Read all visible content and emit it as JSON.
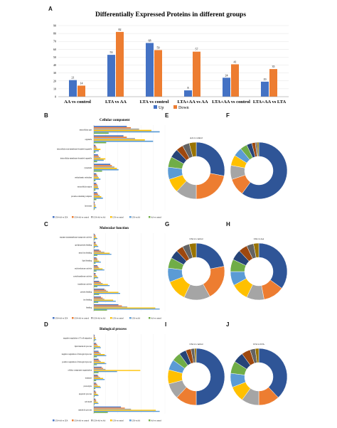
{
  "panels": {
    "A": "A",
    "B": "B",
    "C": "C",
    "D": "D",
    "E": "E",
    "F": "F",
    "G": "G",
    "H": "H",
    "I": "I",
    "J": "J"
  },
  "colors": {
    "up": "#4472C4",
    "down": "#ED7D31",
    "g1": "#4472C4",
    "g2": "#ED7D31",
    "g3": "#A5A5A5",
    "g4": "#FFC000",
    "g5": "#5B9BD5",
    "g6": "#70AD47"
  },
  "chart_data": [
    {
      "id": "A",
      "type": "bar",
      "title": "Differentially Expressed Proteins in different groups",
      "categories": [
        "AA vs control",
        "LTA vs AA",
        "LTA vs control",
        "LTA+AA vs AA",
        "LTA+AA vs control",
        "LTA+AA vs LTA"
      ],
      "series": [
        {
          "name": "Up",
          "values": [
            21,
            53,
            68,
            8,
            24,
            19
          ]
        },
        {
          "name": "Down",
          "values": [
            14,
            82,
            59,
            57,
            41,
            35
          ]
        }
      ],
      "ylim": [
        0,
        90
      ],
      "yticks": [
        0,
        10,
        20,
        30,
        40,
        50,
        60,
        70,
        80,
        90
      ],
      "legend": "bottom"
    },
    {
      "id": "B",
      "type": "bar",
      "orientation": "horizontal",
      "title": "Cellular component",
      "categories": [
        "intracellular part",
        "organelle",
        "intracellular non-membrane-bounded organelle",
        "intracellular membrane-bounded organelle",
        "cytoplasm",
        "endoplasmic reticulum",
        "extracellular region",
        "protein-containing complex",
        "lysosome"
      ],
      "series": [
        {
          "name": "LTA+AA vs LTA",
          "values": [
            40,
            36,
            2,
            5,
            20,
            3,
            3,
            4,
            1
          ]
        },
        {
          "name": "LTA+AA vs control",
          "values": [
            45,
            40,
            3,
            6,
            22,
            4,
            4,
            5,
            1
          ]
        },
        {
          "name": "LTA+AA vs AA",
          "values": [
            55,
            50,
            4,
            8,
            25,
            5,
            5,
            7,
            2
          ]
        },
        {
          "name": "LTA vs control",
          "values": [
            70,
            62,
            8,
            14,
            28,
            6,
            5,
            9,
            2
          ]
        },
        {
          "name": "LTA vs AA",
          "values": [
            80,
            72,
            6,
            12,
            30,
            8,
            6,
            11,
            3
          ]
        },
        {
          "name": "AA vs control",
          "values": [
            18,
            15,
            2,
            4,
            10,
            2,
            2,
            3,
            1
          ]
        }
      ],
      "legend": "bottom"
    },
    {
      "id": "C",
      "type": "bar",
      "orientation": "horizontal",
      "title": "Molecular function",
      "categories": [
        "enzyme transmembrane transporter activity",
        "apolipoprotein binding",
        "metal ion binding",
        "lipid binding",
        "oxidoreductase activity",
        "acetyltransferase activity",
        "transferase activity",
        "protein binding",
        "ion binding",
        "binding"
      ],
      "series": [
        {
          "name": "LTA+AA vs LTA",
          "values": [
            1,
            2,
            6,
            3,
            4,
            2,
            6,
            12,
            8,
            28
          ]
        },
        {
          "name": "LTA+AA vs control",
          "values": [
            2,
            2,
            8,
            4,
            5,
            2,
            8,
            14,
            10,
            32
          ]
        },
        {
          "name": "LTA+AA vs AA",
          "values": [
            2,
            3,
            12,
            4,
            6,
            3,
            10,
            16,
            12,
            38
          ]
        },
        {
          "name": "LTA vs control",
          "values": [
            3,
            4,
            18,
            6,
            10,
            4,
            16,
            28,
            22,
            70
          ]
        },
        {
          "name": "LTA vs AA",
          "values": [
            4,
            5,
            20,
            8,
            12,
            5,
            18,
            30,
            25,
            75
          ]
        },
        {
          "name": "AA vs control",
          "values": [
            1,
            1,
            4,
            2,
            3,
            1,
            4,
            6,
            5,
            15
          ]
        }
      ],
      "legend": "bottom"
    },
    {
      "id": "D",
      "type": "bar",
      "orientation": "horizontal",
      "title": "Biological process",
      "categories": [
        "negative regulation of T cell migration",
        "lipid metabolic process",
        "negative regulation of biological process",
        "positive regulation of biological process",
        "cellular component organization",
        "transport",
        "proteolysis",
        "apoptotic process",
        "cell death",
        "metabolic process"
      ],
      "series": [
        {
          "name": "LTA+AA vs LTA",
          "values": [
            1,
            3,
            6,
            6,
            10,
            5,
            3,
            2,
            2,
            35
          ]
        },
        {
          "name": "LTA+AA vs control",
          "values": [
            1,
            4,
            7,
            7,
            12,
            6,
            4,
            3,
            3,
            40
          ]
        },
        {
          "name": "LTA+AA vs AA",
          "values": [
            2,
            5,
            9,
            9,
            15,
            8,
            5,
            3,
            3,
            48
          ]
        },
        {
          "name": "LTA vs control",
          "values": [
            2,
            8,
            14,
            14,
            60,
            12,
            8,
            5,
            5,
            80
          ]
        },
        {
          "name": "LTA vs AA",
          "values": [
            3,
            9,
            16,
            16,
            30,
            14,
            9,
            6,
            6,
            85
          ]
        },
        {
          "name": "AA vs control",
          "values": [
            1,
            2,
            4,
            4,
            6,
            3,
            2,
            1,
            1,
            18
          ]
        }
      ],
      "legend": "bottom"
    },
    {
      "id": "E",
      "type": "pie",
      "donut": true,
      "title": "AA vs control",
      "values": [
        28,
        22,
        12,
        8,
        7,
        6,
        5,
        4,
        4,
        4
      ]
    },
    {
      "id": "F",
      "type": "pie",
      "donut": true,
      "title": "",
      "values": [
        60,
        10,
        8,
        6,
        5,
        4,
        3,
        2,
        1,
        1
      ]
    },
    {
      "id": "G",
      "type": "pie",
      "donut": true,
      "title": "LTA vs control",
      "values": [
        22,
        20,
        15,
        12,
        8,
        6,
        5,
        4,
        4,
        4
      ]
    },
    {
      "id": "H",
      "type": "pie",
      "donut": true,
      "title": "LTA vs AA",
      "values": [
        35,
        12,
        10,
        10,
        8,
        7,
        6,
        5,
        4,
        3
      ]
    },
    {
      "id": "I",
      "type": "pie",
      "donut": true,
      "title": "LTA vs control",
      "values": [
        50,
        12,
        9,
        8,
        6,
        5,
        4,
        3,
        2,
        1
      ]
    },
    {
      "id": "J",
      "type": "pie",
      "donut": true,
      "title": "LTA vs LTA",
      "values": [
        38,
        12,
        10,
        9,
        8,
        7,
        6,
        5,
        3,
        2
      ]
    }
  ]
}
